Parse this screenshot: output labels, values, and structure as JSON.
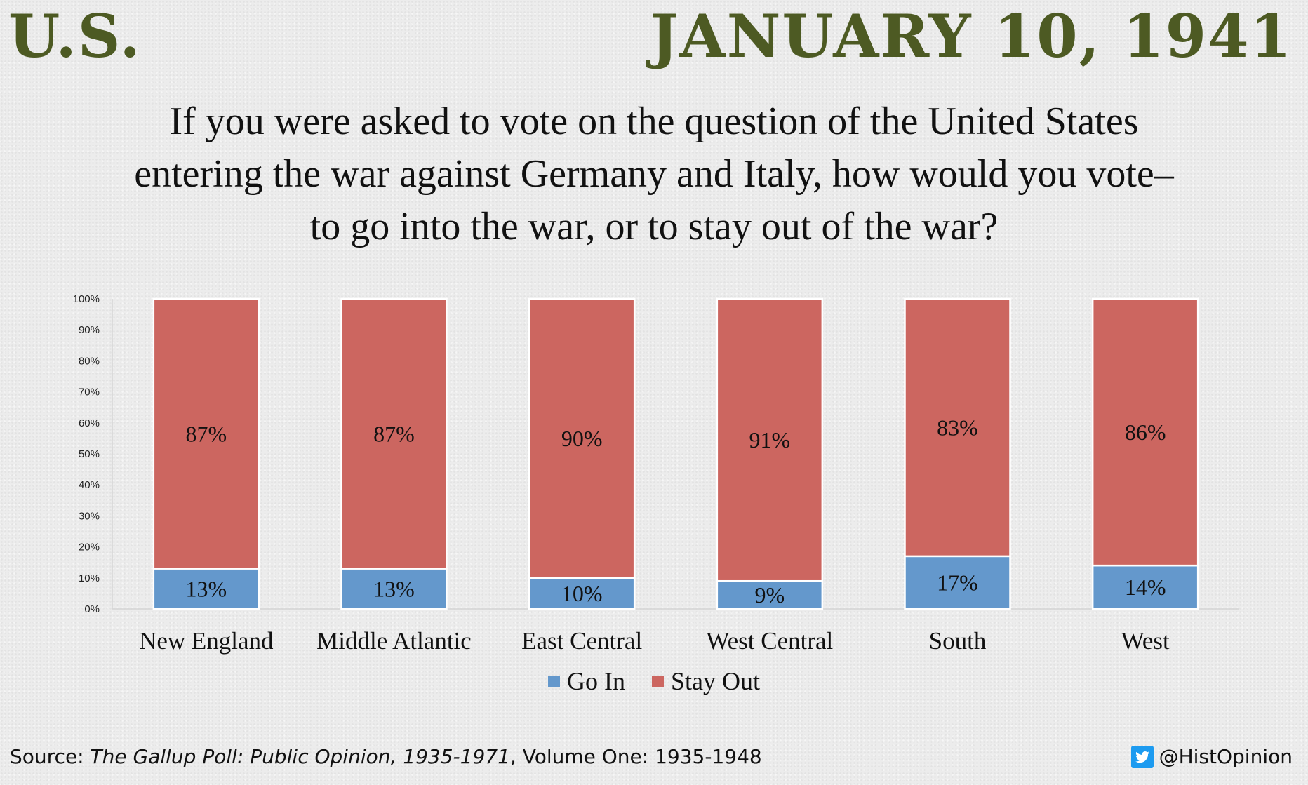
{
  "header": {
    "left": "U.S.",
    "right": "JANUARY 10, 1941"
  },
  "question": {
    "lines": [
      "If you were asked to vote on the question of the United States",
      "entering the war against Germany and Italy, how would you vote–",
      "to go into the war, or to stay out of the war?"
    ]
  },
  "chart_data": {
    "type": "bar",
    "stacked": true,
    "categories": [
      "New England",
      "Middle Atlantic",
      "East Central",
      "West Central",
      "South",
      "West"
    ],
    "series": [
      {
        "name": "Go In",
        "values": [
          13,
          13,
          10,
          9,
          17,
          14
        ],
        "labels": [
          "13%",
          "13%",
          "10%",
          "9%",
          "17%",
          "14%"
        ],
        "color": "#6498cc"
      },
      {
        "name": "Stay Out",
        "values": [
          87,
          87,
          90,
          91,
          83,
          86
        ],
        "labels": [
          "87%",
          "87%",
          "90%",
          "91%",
          "83%",
          "86%"
        ],
        "color": "#cc6660"
      }
    ],
    "yticks": [
      "0%",
      "10%",
      "20%",
      "30%",
      "40%",
      "50%",
      "60%",
      "70%",
      "80%",
      "90%",
      "100%"
    ],
    "ylim": [
      0,
      100
    ],
    "grid": false,
    "legend_position": "bottom-center"
  },
  "footer": {
    "source_prefix": "Source: ",
    "source_title": "The Gallup Poll: Public Opinion, 1935-1971",
    "source_suffix": ", Volume One: 1935-1948",
    "handle": "@HistOpinion"
  },
  "colors": {
    "header": "#4d5a23",
    "go_in": "#6498cc",
    "stay_out": "#cc6660",
    "twitter": "#1d9bf0"
  },
  "icons": {
    "twitter": "twitter-bird-icon"
  }
}
